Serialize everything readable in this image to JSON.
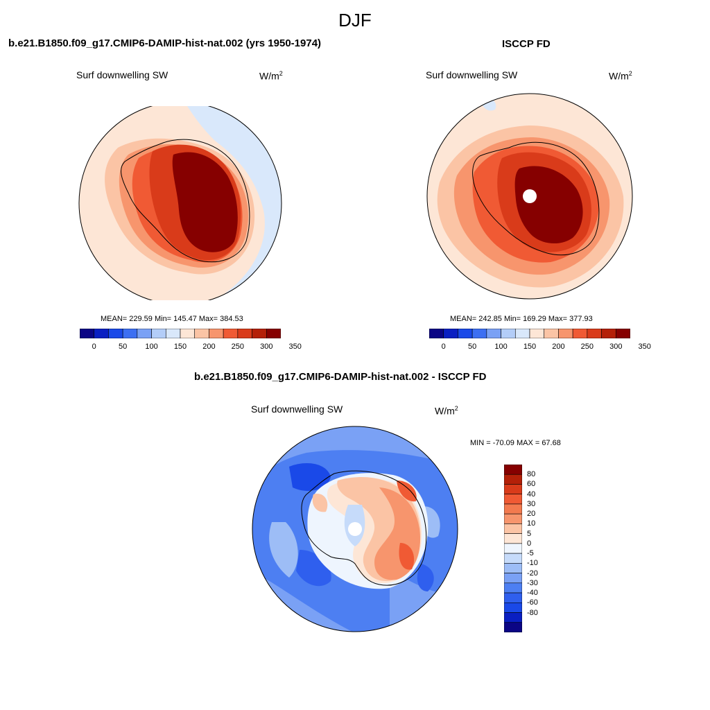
{
  "figure": {
    "title": "DJF"
  },
  "colors": {
    "seq": [
      "#0b0585",
      "#0a1fc2",
      "#1a49e8",
      "#3c6ff2",
      "#7aa1f5",
      "#b3cdf8",
      "#d9e8fb",
      "#fde6d6",
      "#fbc4a5",
      "#f7956d",
      "#f05a34",
      "#d93b1a",
      "#b42008",
      "#860000"
    ],
    "diff": [
      "#860000",
      "#b42008",
      "#d93b1a",
      "#f05a34",
      "#f37a4f",
      "#f7956d",
      "#fbc4a5",
      "#fde6d6",
      "#eef5fe",
      "#c6dbfa",
      "#9dbdf6",
      "#7aa1f5",
      "#4d7ff2",
      "#2f5fee",
      "#1a49e8",
      "#0a1fc2",
      "#0b0585"
    ]
  },
  "panels": [
    {
      "title": "b.e21.B1850.f09_g17.CMIP6-DAMIP-hist-nat.002 (yrs 1950-1974)",
      "variable": "Surf downwelling SW",
      "units": "W/m",
      "units_sup": "2",
      "stats": "MEAN= 229.59  Min= 145.47  Max= 384.53",
      "colorbar_ticks": [
        "0",
        "50",
        "100",
        "150",
        "200",
        "250",
        "300",
        "350"
      ]
    },
    {
      "title": "ISCCP FD",
      "variable": "Surf downwelling SW",
      "units": "W/m",
      "units_sup": "2",
      "stats": "MEAN= 242.85  Min= 169.29  Max= 377.93",
      "colorbar_ticks": [
        "0",
        "50",
        "100",
        "150",
        "200",
        "250",
        "300",
        "350"
      ]
    },
    {
      "title": "b.e21.B1850.f09_g17.CMIP6-DAMIP-hist-nat.002 - ISCCP FD",
      "variable": "Surf downwelling SW",
      "units": "W/m",
      "units_sup": "2",
      "stats": "MIN = -70.09 MAX =  67.68",
      "colorbar_ticks": [
        "80",
        "60",
        "40",
        "30",
        "20",
        "10",
        "5",
        "0",
        "-5",
        "-10",
        "-20",
        "-30",
        "-40",
        "-60",
        "-80"
      ]
    }
  ]
}
